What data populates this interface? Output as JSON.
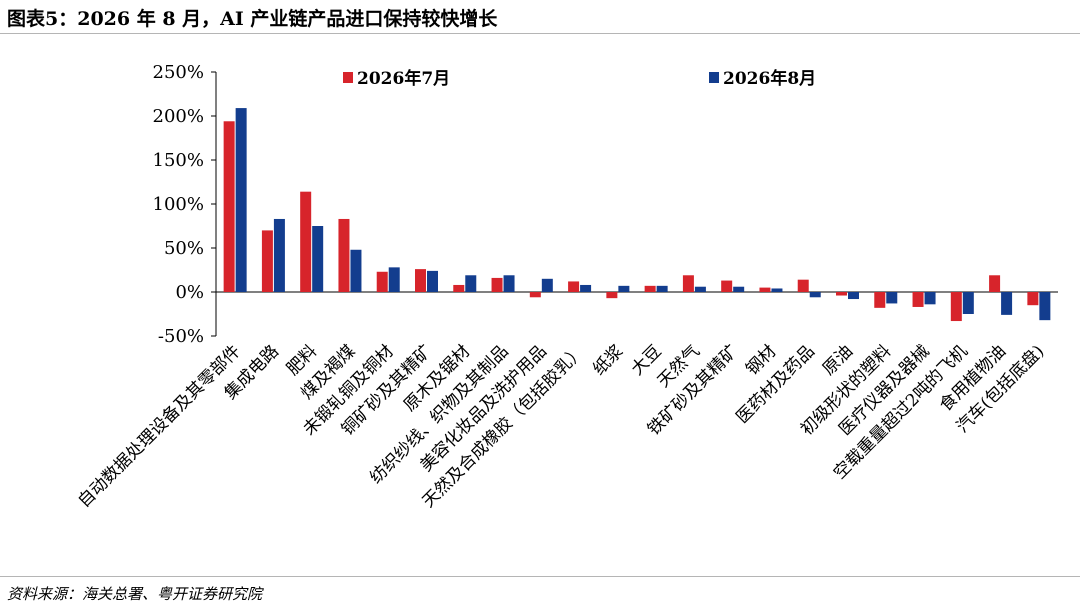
{
  "figure": {
    "title": "图表5：2026 年 8 月，AI 产业链产品进口保持较快增长",
    "source": "资料来源：海关总署、粤开证券研究院"
  },
  "chart_data": {
    "type": "bar",
    "categories": [
      "自动数据处理设备及其零部件",
      "集成电路",
      "肥料",
      "煤及褐煤",
      "未锻轧铜及铜材",
      "铜矿砂及其精矿",
      "原木及锯材",
      "纺织纱线、织物及其制品",
      "美容化妆品及洗护用品",
      "天然及合成橡胶（包括胶乳）",
      "纸浆",
      "大豆",
      "天然气",
      "铁矿砂及其精矿",
      "钢材",
      "医药材及药品",
      "原油",
      "初级形状的塑料",
      "医疗仪器及器械",
      "空载重量超过2吨的飞机",
      "食用植物油",
      "汽车(包括底盘)"
    ],
    "series": [
      {
        "name": "2026年7月",
        "color": "#d7242b",
        "values": [
          194,
          70,
          114,
          83,
          23,
          26,
          8,
          16,
          -6,
          12,
          -7,
          7,
          19,
          13,
          5,
          14,
          -4,
          -18,
          -17,
          -33,
          19,
          -15
        ]
      },
      {
        "name": "2026年8月",
        "color": "#133d8e",
        "values": [
          209,
          83,
          75,
          48,
          28,
          24,
          19,
          19,
          15,
          8,
          7,
          7,
          6,
          6,
          4,
          -6,
          -8,
          -13,
          -14,
          -25,
          -26,
          -32
        ]
      }
    ],
    "y_ticks": [
      "250%",
      "200%",
      "150%",
      "100%",
      "50%",
      "0%",
      "-50%"
    ],
    "ylim": [
      -50,
      250
    ],
    "legend_position": "top",
    "grid": false
  }
}
